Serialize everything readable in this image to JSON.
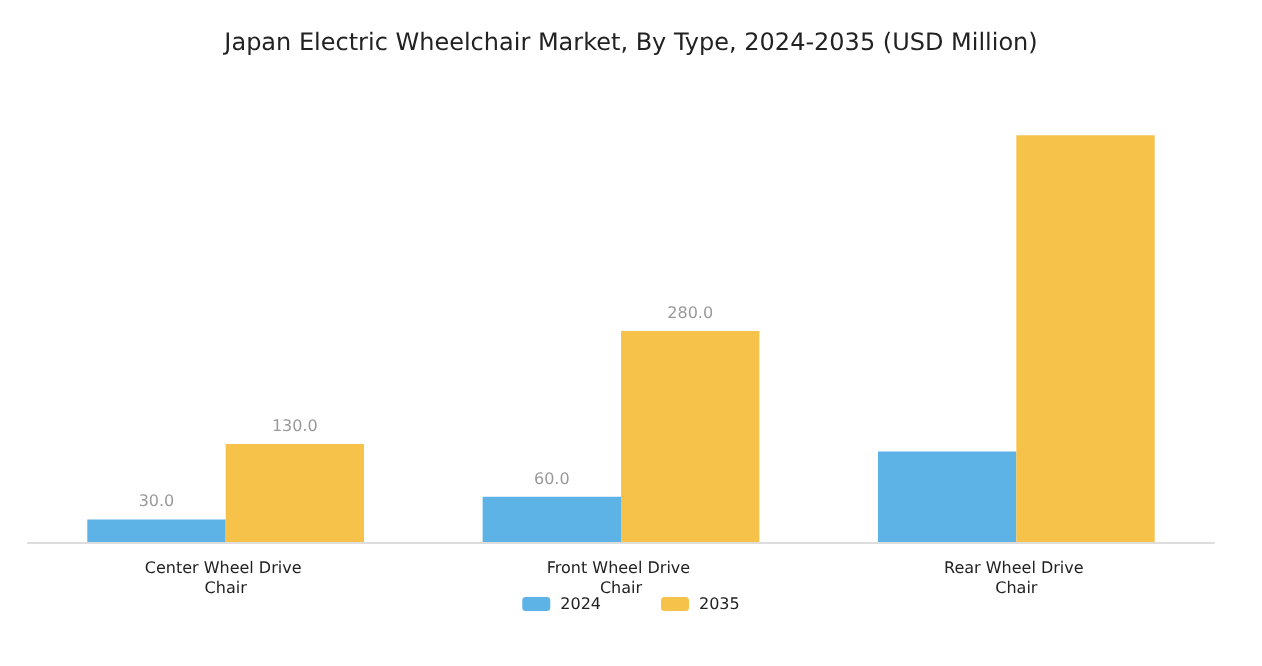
{
  "chart_data": {
    "type": "bar",
    "title": "Japan Electric Wheelchair Market, By Type, 2024-2035 (USD Million)",
    "categories": [
      "Center Wheel Drive Chair",
      "Front Wheel Drive Chair",
      "Rear Wheel Drive Chair"
    ],
    "series": [
      {
        "name": "2024",
        "color": "#5db3e6",
        "values": [
          30,
          60,
          120
        ],
        "value_labels": [
          "30.0",
          "60.0",
          null
        ]
      },
      {
        "name": "2035",
        "color": "#f7c24a",
        "values": [
          130,
          280,
          540
        ],
        "value_labels": [
          "130.0",
          "280.0",
          null
        ]
      }
    ],
    "legend": "bottom"
  }
}
